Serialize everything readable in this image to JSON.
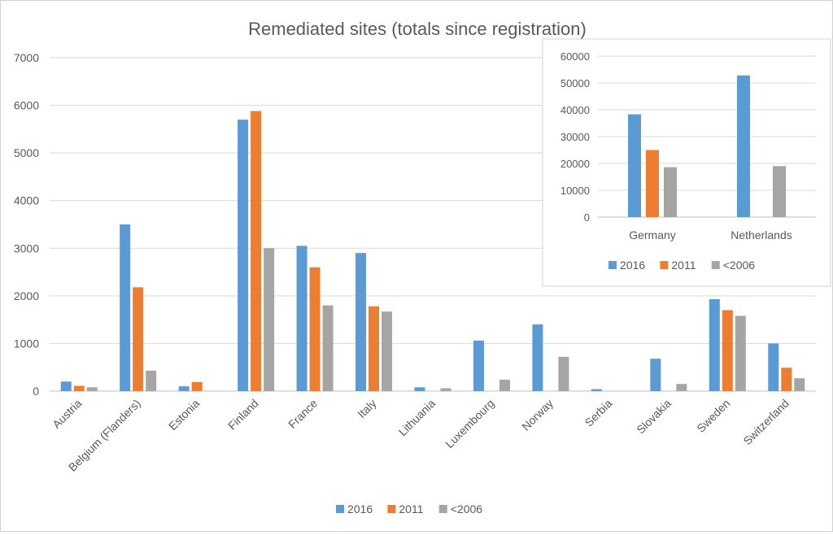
{
  "chart_data": [
    {
      "type": "bar",
      "title": "Remediated sites (totals since registration)",
      "categories": [
        "Austria",
        "Belgium (Flanders)",
        "Estonia",
        "Finland",
        "France",
        "Italy",
        "Lithuania",
        "Luxembourg",
        "Norway",
        "Serbia",
        "Slovakia",
        "Sweden",
        "Switzerland"
      ],
      "series": [
        {
          "name": "2016",
          "values": [
            200,
            3500,
            100,
            5700,
            3050,
            2900,
            80,
            1060,
            1400,
            40,
            680,
            1930,
            1000
          ]
        },
        {
          "name": "2011",
          "values": [
            110,
            2180,
            190,
            5880,
            2600,
            1780,
            null,
            null,
            null,
            null,
            null,
            1700,
            490
          ]
        },
        {
          "name": "<2006",
          "values": [
            80,
            430,
            null,
            3000,
            1800,
            1670,
            60,
            240,
            720,
            null,
            150,
            1580,
            270
          ]
        }
      ],
      "yticks": [
        "0",
        "1000",
        "2000",
        "3000",
        "4000",
        "5000",
        "6000",
        "7000"
      ],
      "ylim": [
        0,
        7000
      ],
      "grid": true,
      "legend": "bottom"
    },
    {
      "type": "bar",
      "categories": [
        "Germany",
        "Netherlands"
      ],
      "series": [
        {
          "name": "2016",
          "values": [
            38300,
            52800
          ]
        },
        {
          "name": "2011",
          "values": [
            25000,
            null
          ]
        },
        {
          "name": "<2006",
          "values": [
            18600,
            19000
          ]
        }
      ],
      "yticks": [
        "0",
        "10000",
        "20000",
        "30000",
        "40000",
        "50000",
        "60000"
      ],
      "ylim": [
        0,
        60000
      ],
      "grid": true,
      "legend": "bottom"
    }
  ],
  "colors": {
    "2016": "#5b9bd5",
    "2011": "#ed7d31",
    "<2006": "#a5a5a5",
    "grid": "#d9d9d9",
    "text": "#595959"
  }
}
